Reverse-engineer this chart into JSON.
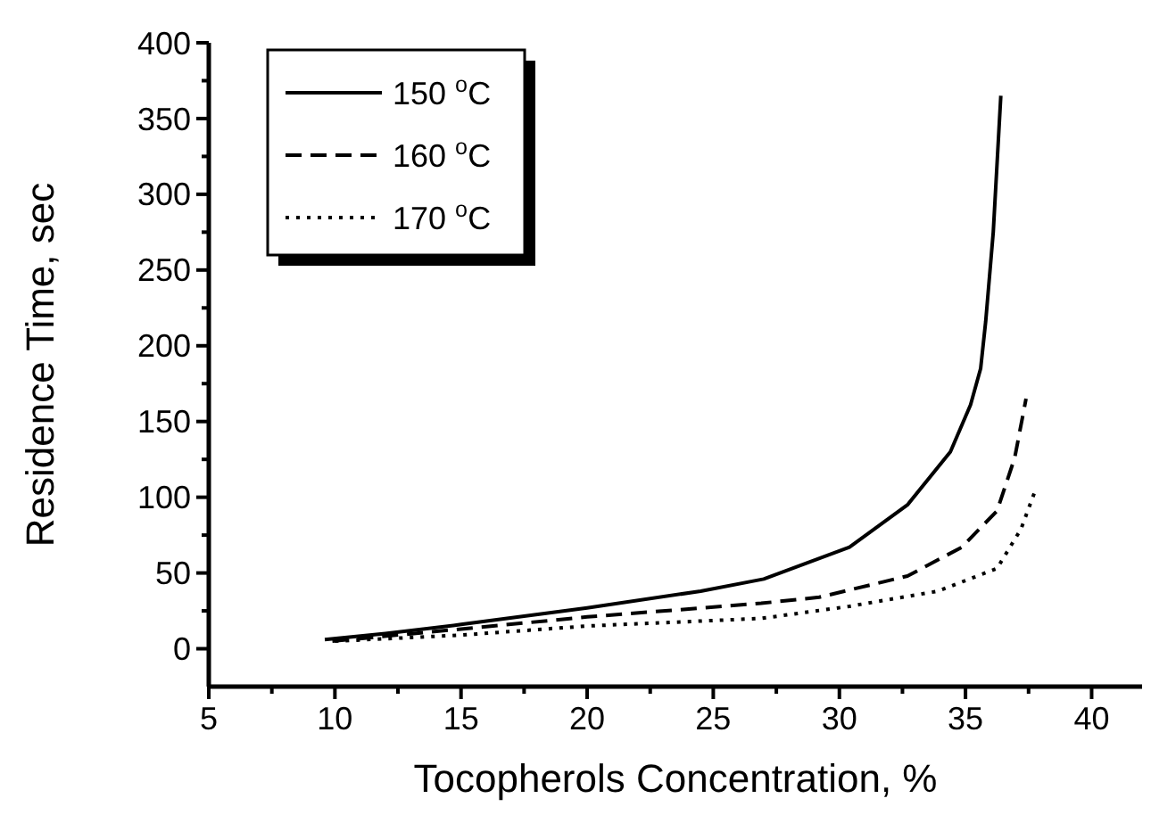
{
  "chart_data": {
    "type": "line",
    "xlabel": "Tocopherols Concentration, %",
    "ylabel": "Residence Time, sec",
    "xlim": [
      5,
      42
    ],
    "ylim": [
      -25,
      400
    ],
    "xticks": [
      5,
      {
        "value": 7.5,
        "label": null
      },
      10,
      {
        "value": 12.5,
        "label": null
      },
      15,
      {
        "value": 17.5,
        "label": null
      },
      20,
      {
        "value": 22.5,
        "label": null
      },
      25,
      {
        "value": 27.5,
        "label": null
      },
      30,
      {
        "value": 32.5,
        "label": null
      },
      35,
      {
        "value": 37.5,
        "label": null
      },
      40
    ],
    "yticks": [
      0,
      {
        "value": 25,
        "label": null
      },
      50,
      {
        "value": 75,
        "label": null
      },
      100,
      {
        "value": 125,
        "label": null
      },
      150,
      {
        "value": 175,
        "label": null
      },
      200,
      {
        "value": 225,
        "label": null
      },
      250,
      {
        "value": 275,
        "label": null
      },
      300,
      {
        "value": 325,
        "label": null
      },
      350,
      {
        "value": 375,
        "label": null
      },
      400
    ],
    "legend": "top left",
    "grid": false,
    "series": [
      {
        "name": "150 $^{o}$C",
        "color": "#000000",
        "line_style": "solid",
        "x": [
          9.6,
          12,
          15,
          20,
          24.5,
          27,
          30.4,
          32.7,
          34.4,
          35.2,
          35.6,
          35.8,
          36.1,
          36.4
        ],
        "values": [
          6,
          10,
          16,
          27,
          38,
          46,
          67,
          95,
          130,
          161,
          185,
          216,
          275,
          365
        ]
      },
      {
        "name": "160 $^{o}$C",
        "color": "#000000",
        "line_style": "dashed",
        "x": [
          9.9,
          15,
          20,
          26.9,
          29.2,
          32.7,
          34.85,
          36.25,
          36.95,
          37.4
        ],
        "values": [
          5,
          13,
          21,
          30,
          34,
          48,
          67,
          91,
          126,
          165
        ]
      },
      {
        "name": "170 $^{o}$C",
        "color": "#000000",
        "line_style": "dotted",
        "x": [
          10,
          15,
          20,
          26.9,
          30.4,
          33.9,
          36.25,
          37.2,
          37.8
        ],
        "values": [
          5,
          9,
          15,
          20,
          28,
          38,
          53,
          79,
          106
        ]
      }
    ]
  }
}
